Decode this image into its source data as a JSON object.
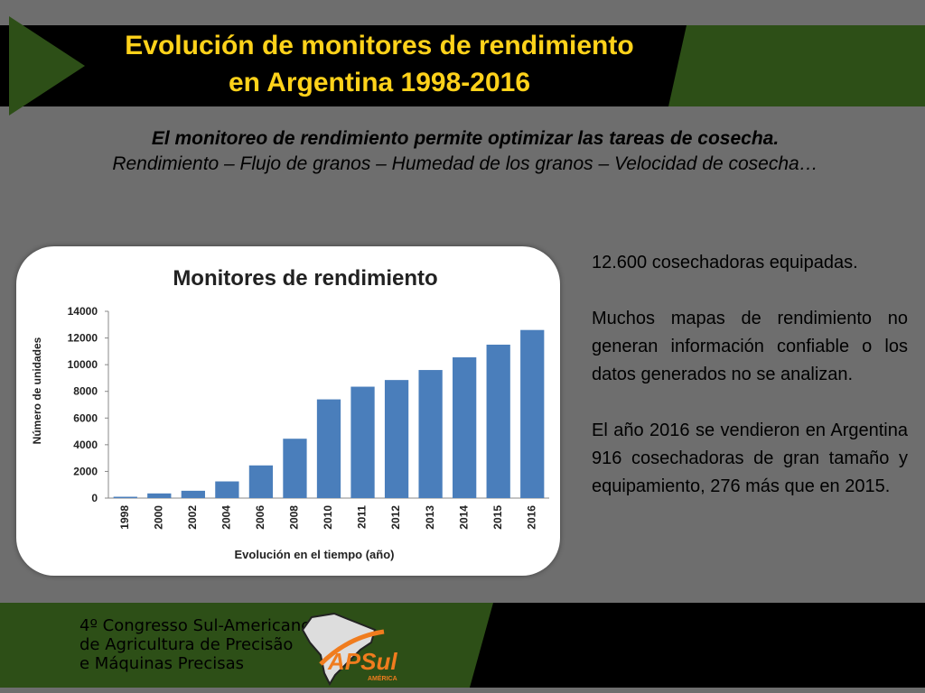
{
  "header": {
    "title_line1": "Evolución de monitores de rendimiento",
    "title_line2": "en Argentina 1998-2016"
  },
  "subtitle": {
    "bold_line": "El monitoreo de rendimiento permite optimizar las tareas de cosecha.",
    "italic_line": "Rendimiento – Flujo de granos – Humedad de los granos – Velocidad de cosecha…"
  },
  "side_text": {
    "p1": "12.600 cosechadoras equipadas.",
    "p2": "Muchos mapas de rendimiento no generan información confiable o los datos generados no se analizan.",
    "p3": "El año 2016 se vendieron en Argentina 916 cosechadoras de gran tamaño y equipamiento, 276 más que en 2015."
  },
  "footer": {
    "line1": "4º Congresso Sul-Americano",
    "line2": "de Agricultura de Precisão",
    "line3": "e Máquinas Precisas",
    "logo_text": "APSul",
    "logo_sub": "AMÉRICA"
  },
  "colors": {
    "title": "#ffd21a",
    "header_green": "#2d4f17",
    "bar": "#4a7ebb",
    "background": "#6e6e6e"
  },
  "chart_data": {
    "type": "bar",
    "title": "Monitores de rendimiento",
    "xlabel": "Evolución en el tiempo (año)",
    "ylabel": "Número de unidades",
    "categories": [
      "1998",
      "2000",
      "2002",
      "2004",
      "2006",
      "2008",
      "2010",
      "2011",
      "2012",
      "2013",
      "2014",
      "2015",
      "2016"
    ],
    "values": [
      100,
      350,
      550,
      1250,
      2450,
      4450,
      7400,
      8350,
      8850,
      9600,
      10550,
      11500,
      12600
    ],
    "ylim": [
      0,
      14000
    ],
    "yticks": [
      0,
      2000,
      4000,
      6000,
      8000,
      10000,
      12000,
      14000
    ],
    "grid": false,
    "legend": "none"
  }
}
